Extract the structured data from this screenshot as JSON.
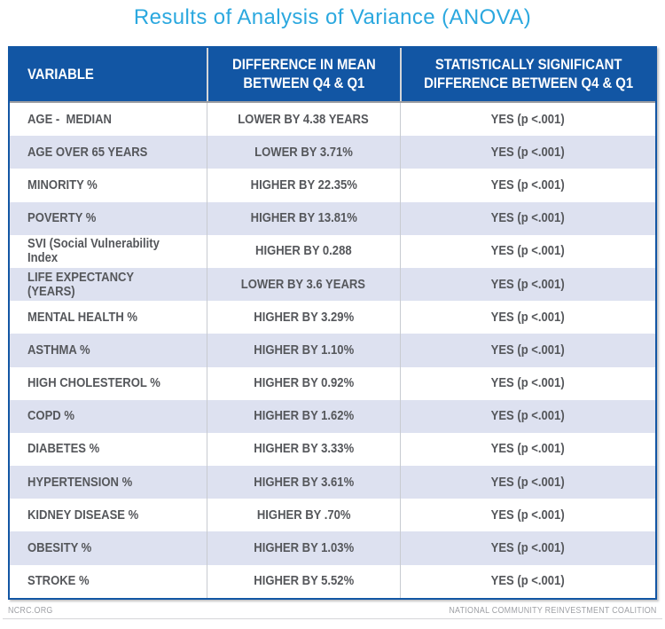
{
  "title": "Results of Analysis of Variance (ANOVA)",
  "chart_data": {
    "type": "table",
    "title": "Results of Analysis of Variance (ANOVA)",
    "columns": [
      "VARIABLE",
      "DIFFERENCE IN MEAN BETWEEN Q4 & Q1",
      "STATISTICALLY SIGNIFICANT DIFFERENCE BETWEEN Q4 & Q1"
    ],
    "rows": [
      [
        "AGE -  MEDIAN",
        "LOWER BY 4.38 YEARS",
        "YES (p <.001)"
      ],
      [
        "AGE OVER 65 YEARS",
        "LOWER BY 3.71%",
        "YES (p <.001)"
      ],
      [
        "MINORITY %",
        "HIGHER BY 22.35%",
        "YES (p <.001)"
      ],
      [
        "POVERTY %",
        "HIGHER BY 13.81%",
        "YES (p <.001)"
      ],
      [
        "SVI (Social Vulnerability Index",
        "HIGHER BY 0.288",
        "YES (p <.001)"
      ],
      [
        "LIFE EXPECTANCY (YEARS)",
        "LOWER BY 3.6 YEARS",
        "YES (p <.001)"
      ],
      [
        "MENTAL HEALTH %",
        "HIGHER BY 3.29%",
        "YES (p <.001)"
      ],
      [
        "ASTHMA %",
        "HIGHER BY 1.10%",
        "YES (p <.001)"
      ],
      [
        "HIGH CHOLESTEROL %",
        "HIGHER BY 0.92%",
        "YES (p <.001)"
      ],
      [
        "COPD %",
        "HIGHER BY 1.62%",
        "YES (p <.001)"
      ],
      [
        "DIABETES %",
        "HIGHER BY 3.33%",
        "YES (p <.001)"
      ],
      [
        "HYPERTENSION %",
        "HIGHER BY 3.61%",
        "YES (p <.001)"
      ],
      [
        "KIDNEY DISEASE %",
        "HIGHER BY .70%",
        "YES (p <.001)"
      ],
      [
        "OBESITY %",
        "HIGHER BY 1.03%",
        "YES (p <.001)"
      ],
      [
        "STROKE %",
        "HIGHER BY 5.52%",
        "YES (p <.001)"
      ]
    ],
    "layout": {
      "row_striping": "white / lavender alternating",
      "legend_position": "none",
      "grid": "column separators only"
    }
  },
  "footer": {
    "left": "NCRC.ORG",
    "right": "NATIONAL COMMUNITY REINVESTMENT COALITION"
  },
  "colors": {
    "title_blue": "#2BA8DF",
    "header_blue": "#1256A4",
    "row_alt_lavender": "#DDE1F0",
    "row_text_gray": "#55575B",
    "footer_gray": "#9FA1A6"
  }
}
